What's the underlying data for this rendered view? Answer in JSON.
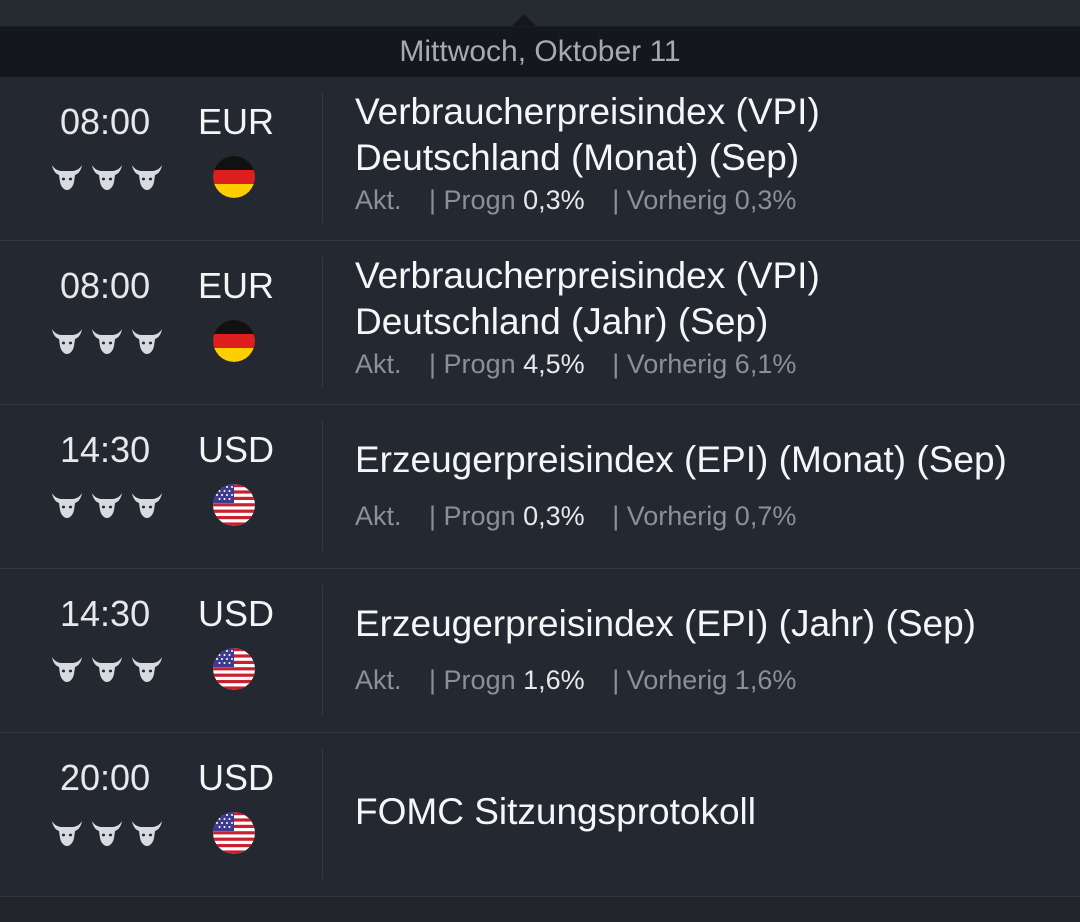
{
  "date_header": "Mittwoch, Oktober 11",
  "labels": {
    "actual": "Akt.",
    "forecast": "| Progn",
    "previous": "| Vorherig"
  },
  "events": [
    {
      "time": "08:00",
      "currency": "EUR",
      "flag": "germany-flag-icon",
      "impact": 3,
      "title_line1": "Verbraucherpreisindex (VPI)",
      "title_line2": "Deutschland (Monat) (Sep)",
      "actual": "",
      "forecast": "0,3%",
      "previous": "0,3%"
    },
    {
      "time": "08:00",
      "currency": "EUR",
      "flag": "germany-flag-icon",
      "impact": 3,
      "title_line1": "Verbraucherpreisindex (VPI)",
      "title_line2": "Deutschland (Jahr) (Sep)",
      "actual": "",
      "forecast": "4,5%",
      "previous": "6,1%"
    },
    {
      "time": "14:30",
      "currency": "USD",
      "flag": "us-flag-icon",
      "impact": 3,
      "title_line1": "Erzeugerpreisindex (EPI) (Monat) (Sep)",
      "title_line2": "",
      "actual": "",
      "forecast": "0,3%",
      "previous": "0,7%"
    },
    {
      "time": "14:30",
      "currency": "USD",
      "flag": "us-flag-icon",
      "impact": 3,
      "title_line1": "Erzeugerpreisindex (EPI) (Jahr) (Sep)",
      "title_line2": "",
      "actual": "",
      "forecast": "1,6%",
      "previous": "1,6%"
    },
    {
      "time": "20:00",
      "currency": "USD",
      "flag": "us-flag-icon",
      "impact": 3,
      "title_line1": "FOMC Sitzungsprotokoll",
      "title_line2": "",
      "actual": "",
      "forecast": "",
      "previous": ""
    }
  ],
  "colors": {
    "background": "#242830",
    "header": "#14171b",
    "muted": "#8b9097"
  }
}
